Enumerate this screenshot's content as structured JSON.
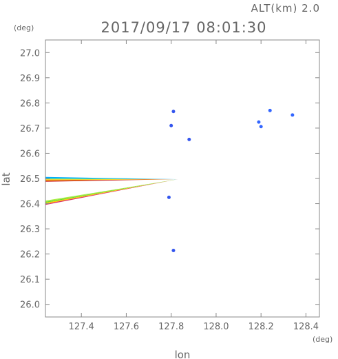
{
  "header": {
    "alt_label": "ALT(km)  2.0",
    "datetime": "2017/09/17  08:01:30"
  },
  "chart_data": {
    "type": "scatter",
    "title": "2017/09/17  08:01:30",
    "xlabel": "lon",
    "ylabel": "lat",
    "x_unit": "(deg)",
    "y_unit": "(deg)",
    "xlim": [
      127.24,
      128.46
    ],
    "ylim": [
      25.95,
      27.05
    ],
    "x_ticks": [
      127.4,
      127.6,
      127.8,
      128.0,
      128.2,
      128.4
    ],
    "y_ticks": [
      26.0,
      26.1,
      26.2,
      26.3,
      26.4,
      26.5,
      26.6,
      26.7,
      26.8,
      26.9,
      27.0
    ],
    "grid": false,
    "radar_origin": [
      127.83,
      26.497
    ],
    "wedge_upper": {
      "lat_top": 26.506,
      "lat_bottom": 26.487,
      "colors": [
        "#00aaff",
        "#55dd99",
        "#ffcc00",
        "#cc2222"
      ]
    },
    "wedge_lower": {
      "lat_top_at_edge": 26.412,
      "lat_bottom_at_edge": 26.395,
      "colors": [
        "#aaee44",
        "#66dd33",
        "#ffcc00",
        "#dd3366"
      ]
    },
    "echoes": [
      {
        "lon": 127.81,
        "lat": 26.766,
        "color": "#3355ee"
      },
      {
        "lon": 127.8,
        "lat": 26.71,
        "color": "#3355ee"
      },
      {
        "lon": 127.88,
        "lat": 26.655,
        "color": "#3355ee"
      },
      {
        "lon": 128.24,
        "lat": 26.77,
        "color": "#3366ff"
      },
      {
        "lon": 128.19,
        "lat": 26.724,
        "color": "#3366ff"
      },
      {
        "lon": 128.2,
        "lat": 26.706,
        "color": "#3366ff"
      },
      {
        "lon": 128.34,
        "lat": 26.752,
        "color": "#3366ff"
      },
      {
        "lon": 127.79,
        "lat": 26.425,
        "color": "#3355ee"
      },
      {
        "lon": 127.81,
        "lat": 26.214,
        "color": "#3355ee"
      }
    ]
  }
}
